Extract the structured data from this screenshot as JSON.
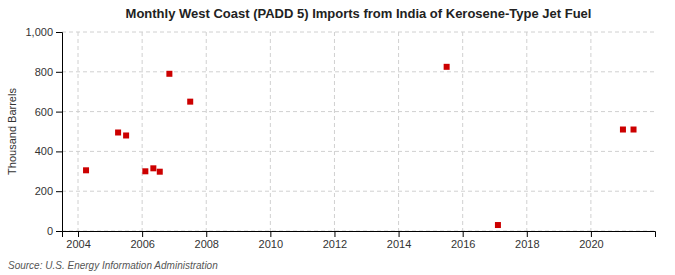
{
  "chart_data": {
    "type": "scatter",
    "title": "Monthly West Coast (PADD 5) Imports from India of Kerosene-Type Jet Fuel",
    "ylabel": "Thousand Barrels",
    "source": "Source: U.S. Energy Information Administration",
    "x": [
      2004.25,
      2005.25,
      2005.5,
      2006.1,
      2006.35,
      2006.55,
      2006.85,
      2007.5,
      2015.5,
      2017.1,
      2021.0,
      2021.33
    ],
    "values": [
      305,
      495,
      480,
      300,
      315,
      298,
      790,
      650,
      825,
      30,
      510,
      510
    ],
    "color": "#cc0000",
    "marker": "square",
    "xlim": [
      2003.5,
      2022.0
    ],
    "xticks": [
      2004,
      2006,
      2008,
      2010,
      2012,
      2014,
      2016,
      2018,
      2020
    ],
    "ylim": [
      0,
      1000
    ],
    "yticks": [
      0,
      200,
      400,
      600,
      800,
      {
        "value": 1000,
        "label": "1,000"
      }
    ],
    "grid": true
  }
}
